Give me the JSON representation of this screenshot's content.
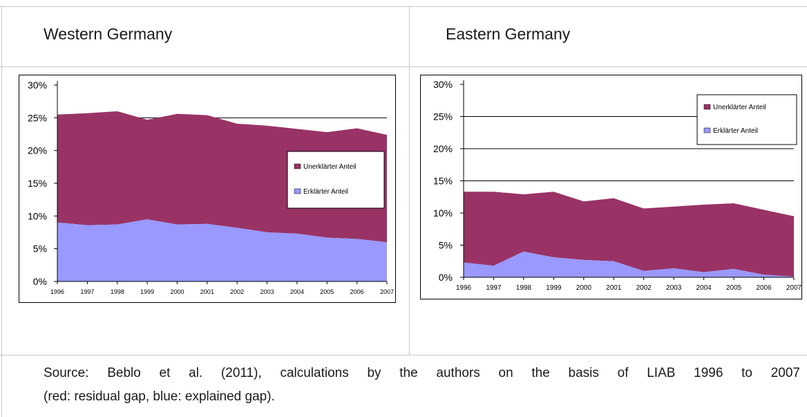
{
  "panels": {
    "west": {
      "title": "Western Germany"
    },
    "east": {
      "title": "Eastern Germany"
    }
  },
  "caption": {
    "line1": "Source: Beblo et al. (2011), calculations by the authors on the basis of LIAB 1996 to 2007",
    "line2": "(red: residual gap, blue: explained gap)."
  },
  "colors": {
    "unexplained": "#993366",
    "explained": "#9999ff",
    "border": "#000000"
  },
  "chart_data": [
    {
      "type": "area",
      "stacked": true,
      "x": [
        "1996",
        "1997",
        "1998",
        "1999",
        "2000",
        "2001",
        "2002",
        "2003",
        "2004",
        "2005",
        "2006",
        "2007"
      ],
      "series": [
        {
          "name": "Erklärter Anteil",
          "values": [
            9.0,
            8.6,
            8.7,
            9.5,
            8.7,
            8.8,
            8.2,
            7.5,
            7.3,
            6.7,
            6.5,
            6.0
          ]
        },
        {
          "name": "Unerklärter Anteil",
          "values": [
            16.5,
            17.1,
            17.3,
            15.2,
            16.9,
            16.6,
            15.9,
            16.3,
            16.0,
            16.1,
            16.9,
            16.4
          ]
        }
      ],
      "yticks": [
        "0%",
        "5%",
        "10%",
        "15%",
        "20%",
        "25%",
        "30%"
      ],
      "ylim": [
        0,
        30
      ],
      "gridlines": [
        25
      ],
      "legend": "right"
    },
    {
      "type": "area",
      "stacked": true,
      "x": [
        "1996",
        "1997",
        "1998",
        "1999",
        "2000",
        "2001",
        "2002",
        "2003",
        "2004",
        "2005",
        "2006",
        "2007"
      ],
      "series": [
        {
          "name": "Erklärter Anteil",
          "values": [
            2.3,
            1.8,
            4.0,
            3.1,
            2.7,
            2.5,
            1.0,
            1.4,
            0.8,
            1.3,
            0.4,
            0.1
          ]
        },
        {
          "name": "Unerklärter Anteil",
          "values": [
            11.0,
            11.5,
            8.9,
            10.2,
            9.1,
            9.8,
            9.7,
            9.6,
            10.5,
            10.2,
            10.1,
            9.4
          ]
        }
      ],
      "legend_labels": [
        "Unerklärter Anteil",
        "Erklärter Anteil"
      ],
      "yticks": [
        "0%",
        "5%",
        "10%",
        "15%",
        "20%",
        "25%",
        "30%"
      ],
      "ylim": [
        0,
        30
      ],
      "gridlines": [
        15,
        20,
        25
      ],
      "legend": "top-right"
    }
  ]
}
